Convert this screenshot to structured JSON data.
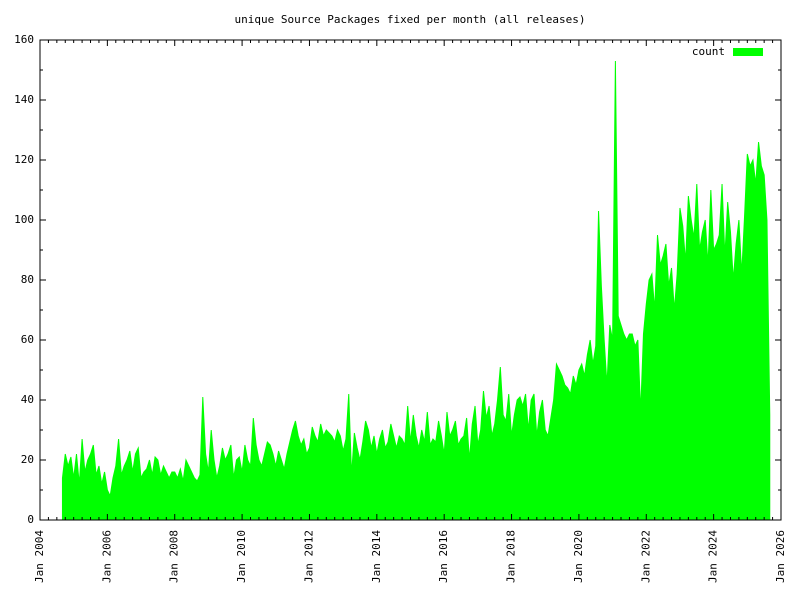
{
  "chart_data": {
    "type": "area",
    "title": "unique Source Packages fixed per month (all releases)",
    "x": [
      "2004-09",
      "2004-10",
      "2004-11",
      "2004-12",
      "2005-01",
      "2005-02",
      "2005-03",
      "2005-04",
      "2005-05",
      "2005-06",
      "2005-07",
      "2005-08",
      "2005-09",
      "2005-10",
      "2005-11",
      "2005-12",
      "2006-01",
      "2006-02",
      "2006-03",
      "2006-04",
      "2006-05",
      "2006-06",
      "2006-07",
      "2006-08",
      "2006-09",
      "2006-10",
      "2006-11",
      "2006-12",
      "2007-01",
      "2007-02",
      "2007-03",
      "2007-04",
      "2007-05",
      "2007-06",
      "2007-07",
      "2007-08",
      "2007-09",
      "2007-10",
      "2007-11",
      "2007-12",
      "2008-01",
      "2008-02",
      "2008-03",
      "2008-04",
      "2008-05",
      "2008-06",
      "2008-07",
      "2008-08",
      "2008-09",
      "2008-10",
      "2008-11",
      "2008-12",
      "2009-01",
      "2009-02",
      "2009-03",
      "2009-04",
      "2009-05",
      "2009-06",
      "2009-07",
      "2009-08",
      "2009-09",
      "2009-10",
      "2009-11",
      "2009-12",
      "2010-01",
      "2010-02",
      "2010-03",
      "2010-04",
      "2010-05",
      "2010-06",
      "2010-07",
      "2010-08",
      "2010-09",
      "2010-10",
      "2010-11",
      "2010-12",
      "2011-01",
      "2011-02",
      "2011-03",
      "2011-04",
      "2011-05",
      "2011-06",
      "2011-07",
      "2011-08",
      "2011-09",
      "2011-10",
      "2011-11",
      "2011-12",
      "2012-01",
      "2012-02",
      "2012-03",
      "2012-04",
      "2012-05",
      "2012-06",
      "2012-07",
      "2012-08",
      "2012-09",
      "2012-10",
      "2012-11",
      "2012-12",
      "2013-01",
      "2013-02",
      "2013-03",
      "2013-04",
      "2013-05",
      "2013-06",
      "2013-07",
      "2013-08",
      "2013-09",
      "2013-10",
      "2013-11",
      "2013-12",
      "2014-01",
      "2014-02",
      "2014-03",
      "2014-04",
      "2014-05",
      "2014-06",
      "2014-07",
      "2014-08",
      "2014-09",
      "2014-10",
      "2014-11",
      "2014-12",
      "2015-01",
      "2015-02",
      "2015-03",
      "2015-04",
      "2015-05",
      "2015-06",
      "2015-07",
      "2015-08",
      "2015-09",
      "2015-10",
      "2015-11",
      "2015-12",
      "2016-01",
      "2016-02",
      "2016-03",
      "2016-04",
      "2016-05",
      "2016-06",
      "2016-07",
      "2016-08",
      "2016-09",
      "2016-10",
      "2016-11",
      "2016-12",
      "2017-01",
      "2017-02",
      "2017-03",
      "2017-04",
      "2017-05",
      "2017-06",
      "2017-07",
      "2017-08",
      "2017-09",
      "2017-10",
      "2017-11",
      "2017-12",
      "2018-01",
      "2018-02",
      "2018-03",
      "2018-04",
      "2018-05",
      "2018-06",
      "2018-07",
      "2018-08",
      "2018-09",
      "2018-10",
      "2018-11",
      "2018-12",
      "2019-01",
      "2019-02",
      "2019-03",
      "2019-04",
      "2019-05",
      "2019-06",
      "2019-07",
      "2019-08",
      "2019-09",
      "2019-10",
      "2019-11",
      "2019-12",
      "2020-01",
      "2020-02",
      "2020-03",
      "2020-04",
      "2020-05",
      "2020-06",
      "2020-07",
      "2020-08",
      "2020-09",
      "2020-10",
      "2020-11",
      "2020-12",
      "2021-01",
      "2021-02",
      "2021-03",
      "2021-04",
      "2021-05",
      "2021-06",
      "2021-07",
      "2021-08",
      "2021-09",
      "2021-10",
      "2021-11",
      "2021-12",
      "2022-01",
      "2022-02",
      "2022-03",
      "2022-04",
      "2022-05",
      "2022-06",
      "2022-07",
      "2022-08",
      "2022-09",
      "2022-10",
      "2022-11",
      "2022-12",
      "2023-01",
      "2023-02",
      "2023-03",
      "2023-04",
      "2023-05",
      "2023-06",
      "2023-07",
      "2023-08",
      "2023-09",
      "2023-10",
      "2023-11",
      "2023-12",
      "2024-01",
      "2024-02",
      "2024-03",
      "2024-04",
      "2024-05",
      "2024-06",
      "2024-07",
      "2024-08",
      "2024-09",
      "2024-10",
      "2024-11",
      "2024-12",
      "2025-01",
      "2025-02",
      "2025-03",
      "2025-04",
      "2025-05",
      "2025-06",
      "2025-07",
      "2025-08",
      "2025-09"
    ],
    "series": [
      {
        "name": "count",
        "color": "#00ff00",
        "values": [
          14,
          22,
          18,
          21,
          14,
          22,
          12,
          27,
          16,
          20,
          22,
          25,
          15,
          18,
          12,
          16,
          10,
          8,
          14,
          18,
          27,
          15,
          18,
          20,
          23,
          16,
          22,
          24,
          14,
          16,
          17,
          20,
          15,
          21,
          20,
          15,
          18,
          16,
          14,
          16,
          16,
          14,
          17,
          13,
          20,
          18,
          16,
          14,
          13,
          15,
          41,
          22,
          16,
          30,
          20,
          14,
          18,
          24,
          20,
          22,
          25,
          14,
          20,
          21,
          16,
          25,
          20,
          18,
          34,
          25,
          20,
          18,
          22,
          26,
          25,
          22,
          18,
          23,
          20,
          17,
          22,
          26,
          30,
          33,
          28,
          25,
          27,
          22,
          24,
          31,
          28,
          26,
          32,
          28,
          30,
          29,
          28,
          26,
          30,
          28,
          23,
          27,
          42,
          15,
          29,
          24,
          20,
          26,
          33,
          30,
          24,
          28,
          22,
          27,
          30,
          24,
          26,
          32,
          28,
          24,
          28,
          27,
          25,
          38,
          26,
          35,
          28,
          24,
          30,
          26,
          36,
          25,
          27,
          26,
          33,
          28,
          22,
          36,
          28,
          30,
          33,
          25,
          27,
          28,
          34,
          20,
          32,
          38,
          25,
          30,
          43,
          34,
          38,
          28,
          32,
          40,
          51,
          35,
          33,
          42,
          28,
          35,
          40,
          41,
          38,
          42,
          30,
          40,
          42,
          28,
          36,
          40,
          30,
          28,
          34,
          40,
          52,
          50,
          48,
          45,
          44,
          42,
          48,
          45,
          50,
          52,
          48,
          55,
          60,
          52,
          58,
          103,
          78,
          60,
          45,
          65,
          60,
          153,
          68,
          65,
          62,
          60,
          62,
          62,
          58,
          60,
          36,
          62,
          72,
          80,
          82,
          70,
          95,
          85,
          88,
          92,
          78,
          84,
          70,
          82,
          104,
          98,
          86,
          108,
          100,
          94,
          112,
          90,
          96,
          100,
          85,
          110,
          90,
          92,
          95,
          112,
          88,
          106,
          96,
          80,
          92,
          100,
          82,
          101,
          122,
          118,
          120,
          112,
          126,
          118,
          115,
          100,
          35
        ]
      }
    ],
    "xlim": [
      "2004-01",
      "2026-01"
    ],
    "xticks": [
      {
        "value": "2004-01",
        "label": "Jan 2004"
      },
      {
        "value": "2006-01",
        "label": "Jan 2006"
      },
      {
        "value": "2008-01",
        "label": "Jan 2008"
      },
      {
        "value": "2010-01",
        "label": "Jan 2010"
      },
      {
        "value": "2012-01",
        "label": "Jan 2012"
      },
      {
        "value": "2014-01",
        "label": "Jan 2014"
      },
      {
        "value": "2016-01",
        "label": "Jan 2016"
      },
      {
        "value": "2018-01",
        "label": "Jan 2018"
      },
      {
        "value": "2020-01",
        "label": "Jan 2020"
      },
      {
        "value": "2022-01",
        "label": "Jan 2022"
      },
      {
        "value": "2024-01",
        "label": "Jan 2024"
      },
      {
        "value": "2026-01",
        "label": "Jan 2026"
      }
    ],
    "ylim": [
      0,
      160
    ],
    "yticks": [
      0,
      20,
      40,
      60,
      80,
      100,
      120,
      140,
      160
    ],
    "legend": "top-right"
  }
}
